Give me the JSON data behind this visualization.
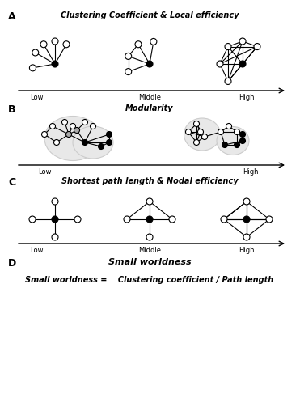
{
  "title_A": "Clustering Coefficient & Local efficiency",
  "title_B": "Modularity",
  "title_C": "Shortest path length & Nodal efficiency",
  "title_D": "Small worldness",
  "formula": "Small worldness =    Clustering coefficient / Path length",
  "label_low": "Low",
  "label_middle": "Middle",
  "label_high": "High",
  "bg_color": "#ffffff",
  "node_edge_color": "#000000",
  "node_face_open": "#ffffff",
  "node_face_black": "#000000",
  "node_face_gray": "#aaaaaa",
  "line_color": "#000000"
}
